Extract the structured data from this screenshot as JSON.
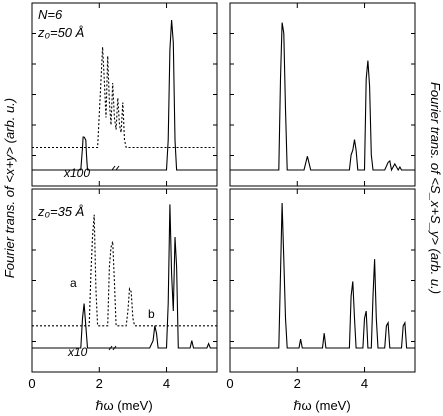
{
  "figure": {
    "left_ylabel": "Fourier trans. of <x+y>  (arb. u.)",
    "right_ylabel": "Fourier trans. of <S_x+S_y>  (arb. u.)",
    "xlabel": "ℏω (meV)",
    "xlabel_right": "ℏω (meV)"
  },
  "chart_data": [
    {
      "type": "line",
      "panel": "top-left",
      "annotations": {
        "n": "N=6",
        "z0": "z₀=50 Å",
        "scale": "x100"
      },
      "xlim": [
        0,
        5.5
      ],
      "xticks": [
        "0",
        "2",
        "4"
      ],
      "x": [
        0.0,
        1.45,
        1.5,
        1.52,
        1.55,
        1.6,
        1.62,
        1.65,
        1.7,
        1.95,
        2.05,
        2.1,
        2.15,
        2.2,
        2.25,
        2.3,
        2.35,
        2.4,
        2.45,
        2.5,
        2.55,
        2.6,
        2.65,
        2.7,
        2.75,
        2.8,
        2.85,
        3.0,
        3.5,
        3.8,
        4.0,
        4.05,
        4.1,
        4.15,
        4.2,
        4.25,
        4.3,
        4.6,
        5.5
      ],
      "series": [
        {
          "style": "solid",
          "values": [
            0.0,
            0.0,
            0.15,
            0.22,
            0.22,
            0.2,
            0.1,
            0.0,
            0.0,
            0.0,
            0.0,
            0.0,
            0.0,
            0.0,
            0.0,
            0.0,
            0.0,
            0.0,
            0.0,
            0.0,
            0.0,
            0.0,
            0.0,
            0.0,
            0.0,
            0.0,
            0.0,
            0.0,
            0.0,
            0.0,
            0.0,
            0.2,
            0.8,
            1.0,
            0.85,
            0.2,
            0.0,
            0.0,
            0.0
          ]
        },
        {
          "style": "dotted",
          "values": [
            0.15,
            0.15,
            0.15,
            0.15,
            0.15,
            0.15,
            0.15,
            0.15,
            0.15,
            0.15,
            0.6,
            0.82,
            0.6,
            0.35,
            0.76,
            0.45,
            0.3,
            0.58,
            0.35,
            0.27,
            0.48,
            0.3,
            0.25,
            0.45,
            0.2,
            0.15,
            0.15,
            0.15,
            0.15,
            0.15,
            0.15,
            0.15,
            0.15,
            0.15,
            0.15,
            0.15,
            0.15,
            0.15,
            0.15
          ]
        }
      ]
    },
    {
      "type": "line",
      "panel": "top-right",
      "xlim": [
        0,
        5.5
      ],
      "xticks": [
        "0",
        "2",
        "4"
      ],
      "x": [
        0.0,
        1.45,
        1.5,
        1.55,
        1.6,
        1.65,
        1.7,
        2.2,
        2.3,
        2.4,
        3.55,
        3.6,
        3.65,
        3.7,
        3.75,
        3.8,
        4.0,
        4.05,
        4.1,
        4.15,
        4.2,
        4.25,
        4.6,
        4.7,
        4.75,
        4.8,
        4.9,
        5.0,
        5.05,
        5.1,
        5.5
      ],
      "series": [
        {
          "style": "solid",
          "values": [
            0.0,
            0.0,
            0.6,
            0.97,
            0.9,
            0.4,
            0.0,
            0.0,
            0.09,
            0.0,
            0.0,
            0.1,
            0.13,
            0.2,
            0.13,
            0.0,
            0.0,
            0.6,
            0.72,
            0.55,
            0.1,
            0.0,
            0.0,
            0.05,
            0.06,
            0.0,
            0.04,
            0.0,
            0.02,
            0.0,
            0.0
          ]
        }
      ]
    },
    {
      "type": "line",
      "panel": "bottom-left",
      "annotations": {
        "z0": "z₀=35 Å",
        "scale": "x10",
        "peak_a": "a",
        "peak_b": "b"
      },
      "xlim": [
        0,
        5.5
      ],
      "xticks": [
        "0",
        "2",
        "4"
      ],
      "x": [
        0.0,
        1.45,
        1.5,
        1.55,
        1.6,
        1.65,
        1.7,
        1.75,
        1.8,
        1.85,
        1.9,
        1.95,
        2.25,
        2.3,
        2.35,
        2.4,
        2.45,
        2.5,
        2.8,
        2.85,
        2.9,
        2.95,
        3.0,
        3.05,
        3.5,
        3.6,
        3.65,
        3.7,
        3.75,
        4.0,
        4.05,
        4.1,
        4.15,
        4.2,
        4.25,
        4.3,
        4.35,
        4.4,
        4.45,
        4.7,
        4.75,
        4.8,
        5.2,
        5.25,
        5.3,
        5.5
      ],
      "series": [
        {
          "style": "solid",
          "values": [
            0.0,
            0.0,
            0.2,
            0.3,
            0.15,
            0.0,
            0.0,
            0.0,
            0.0,
            0.0,
            0.0,
            0.0,
            0.0,
            0.0,
            0.0,
            0.0,
            0.0,
            0.0,
            0.0,
            0.0,
            0.0,
            0.0,
            0.0,
            0.0,
            0.0,
            0.05,
            0.15,
            0.1,
            0.0,
            0.0,
            0.3,
            0.97,
            0.5,
            0.25,
            0.75,
            0.55,
            0.0,
            0.0,
            0.0,
            0.0,
            0.05,
            0.0,
            0.0,
            0.03,
            0.0,
            0.0
          ]
        },
        {
          "style": "dotted",
          "values": [
            0.15,
            0.15,
            0.15,
            0.15,
            0.15,
            0.15,
            0.15,
            0.5,
            0.75,
            0.9,
            0.4,
            0.15,
            0.15,
            0.55,
            0.68,
            0.72,
            0.45,
            0.15,
            0.15,
            0.25,
            0.4,
            0.38,
            0.2,
            0.15,
            0.15,
            0.15,
            0.15,
            0.15,
            0.15,
            0.15,
            0.15,
            0.15,
            0.15,
            0.15,
            0.15,
            0.15,
            0.15,
            0.15,
            0.15,
            0.15,
            0.15,
            0.15,
            0.15,
            0.15,
            0.15,
            0.15
          ]
        }
      ]
    },
    {
      "type": "line",
      "panel": "bottom-right",
      "xlim": [
        0,
        5.5
      ],
      "xticks": [
        "0",
        "2",
        "4"
      ],
      "x": [
        0.0,
        1.45,
        1.5,
        1.55,
        1.6,
        1.65,
        1.7,
        2.05,
        2.1,
        2.15,
        2.75,
        2.8,
        2.85,
        3.55,
        3.6,
        3.65,
        3.7,
        3.75,
        3.95,
        4.0,
        4.05,
        4.1,
        4.2,
        4.25,
        4.3,
        4.35,
        4.4,
        4.6,
        4.65,
        4.7,
        4.75,
        5.1,
        5.15,
        5.2,
        5.25,
        5.5
      ],
      "series": [
        {
          "style": "solid",
          "values": [
            0.0,
            0.0,
            0.5,
            0.98,
            0.6,
            0.2,
            0.0,
            0.0,
            0.06,
            0.0,
            0.0,
            0.1,
            0.0,
            0.0,
            0.35,
            0.45,
            0.2,
            0.0,
            0.0,
            0.2,
            0.25,
            0.0,
            0.0,
            0.35,
            0.6,
            0.2,
            0.0,
            0.0,
            0.15,
            0.17,
            0.0,
            0.0,
            0.15,
            0.17,
            0.0,
            0.0
          ]
        }
      ]
    }
  ]
}
